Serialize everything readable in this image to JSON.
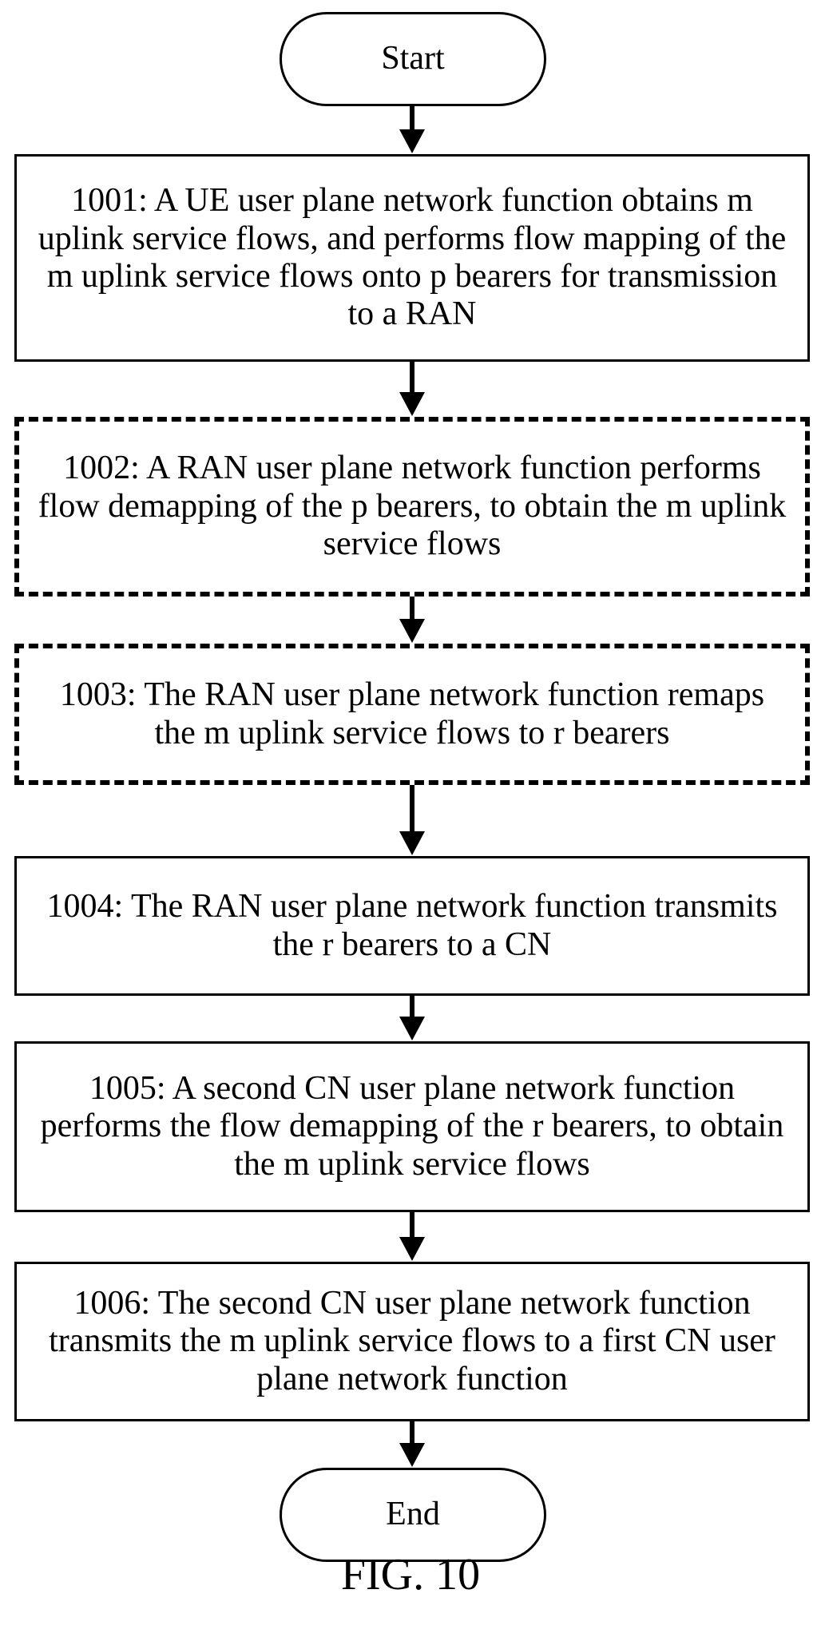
{
  "flowchart": {
    "start": "Start",
    "steps": [
      {
        "text": "1001: A UE user plane network function obtains m uplink service flows, and performs flow mapping of the m uplink service flows onto p bearers for transmission to a RAN",
        "style": "solid"
      },
      {
        "text": "1002: A RAN user plane network function performs flow demapping of the p bearers, to obtain the m uplink service flows",
        "style": "dashed"
      },
      {
        "text": "1003: The RAN user plane network function remaps the m uplink service flows to r bearers",
        "style": "dashed"
      },
      {
        "text": "1004: The RAN user plane network function transmits the r bearers to a CN",
        "style": "solid"
      },
      {
        "text": "1005: A second CN user plane network function performs the flow demapping of the r bearers, to obtain the m uplink service flows",
        "style": "solid"
      },
      {
        "text": "1006: The second CN user plane network function transmits the m uplink service flows to a first CN user plane network function",
        "style": "solid"
      }
    ],
    "end": "End"
  },
  "caption": "FIG. 10"
}
